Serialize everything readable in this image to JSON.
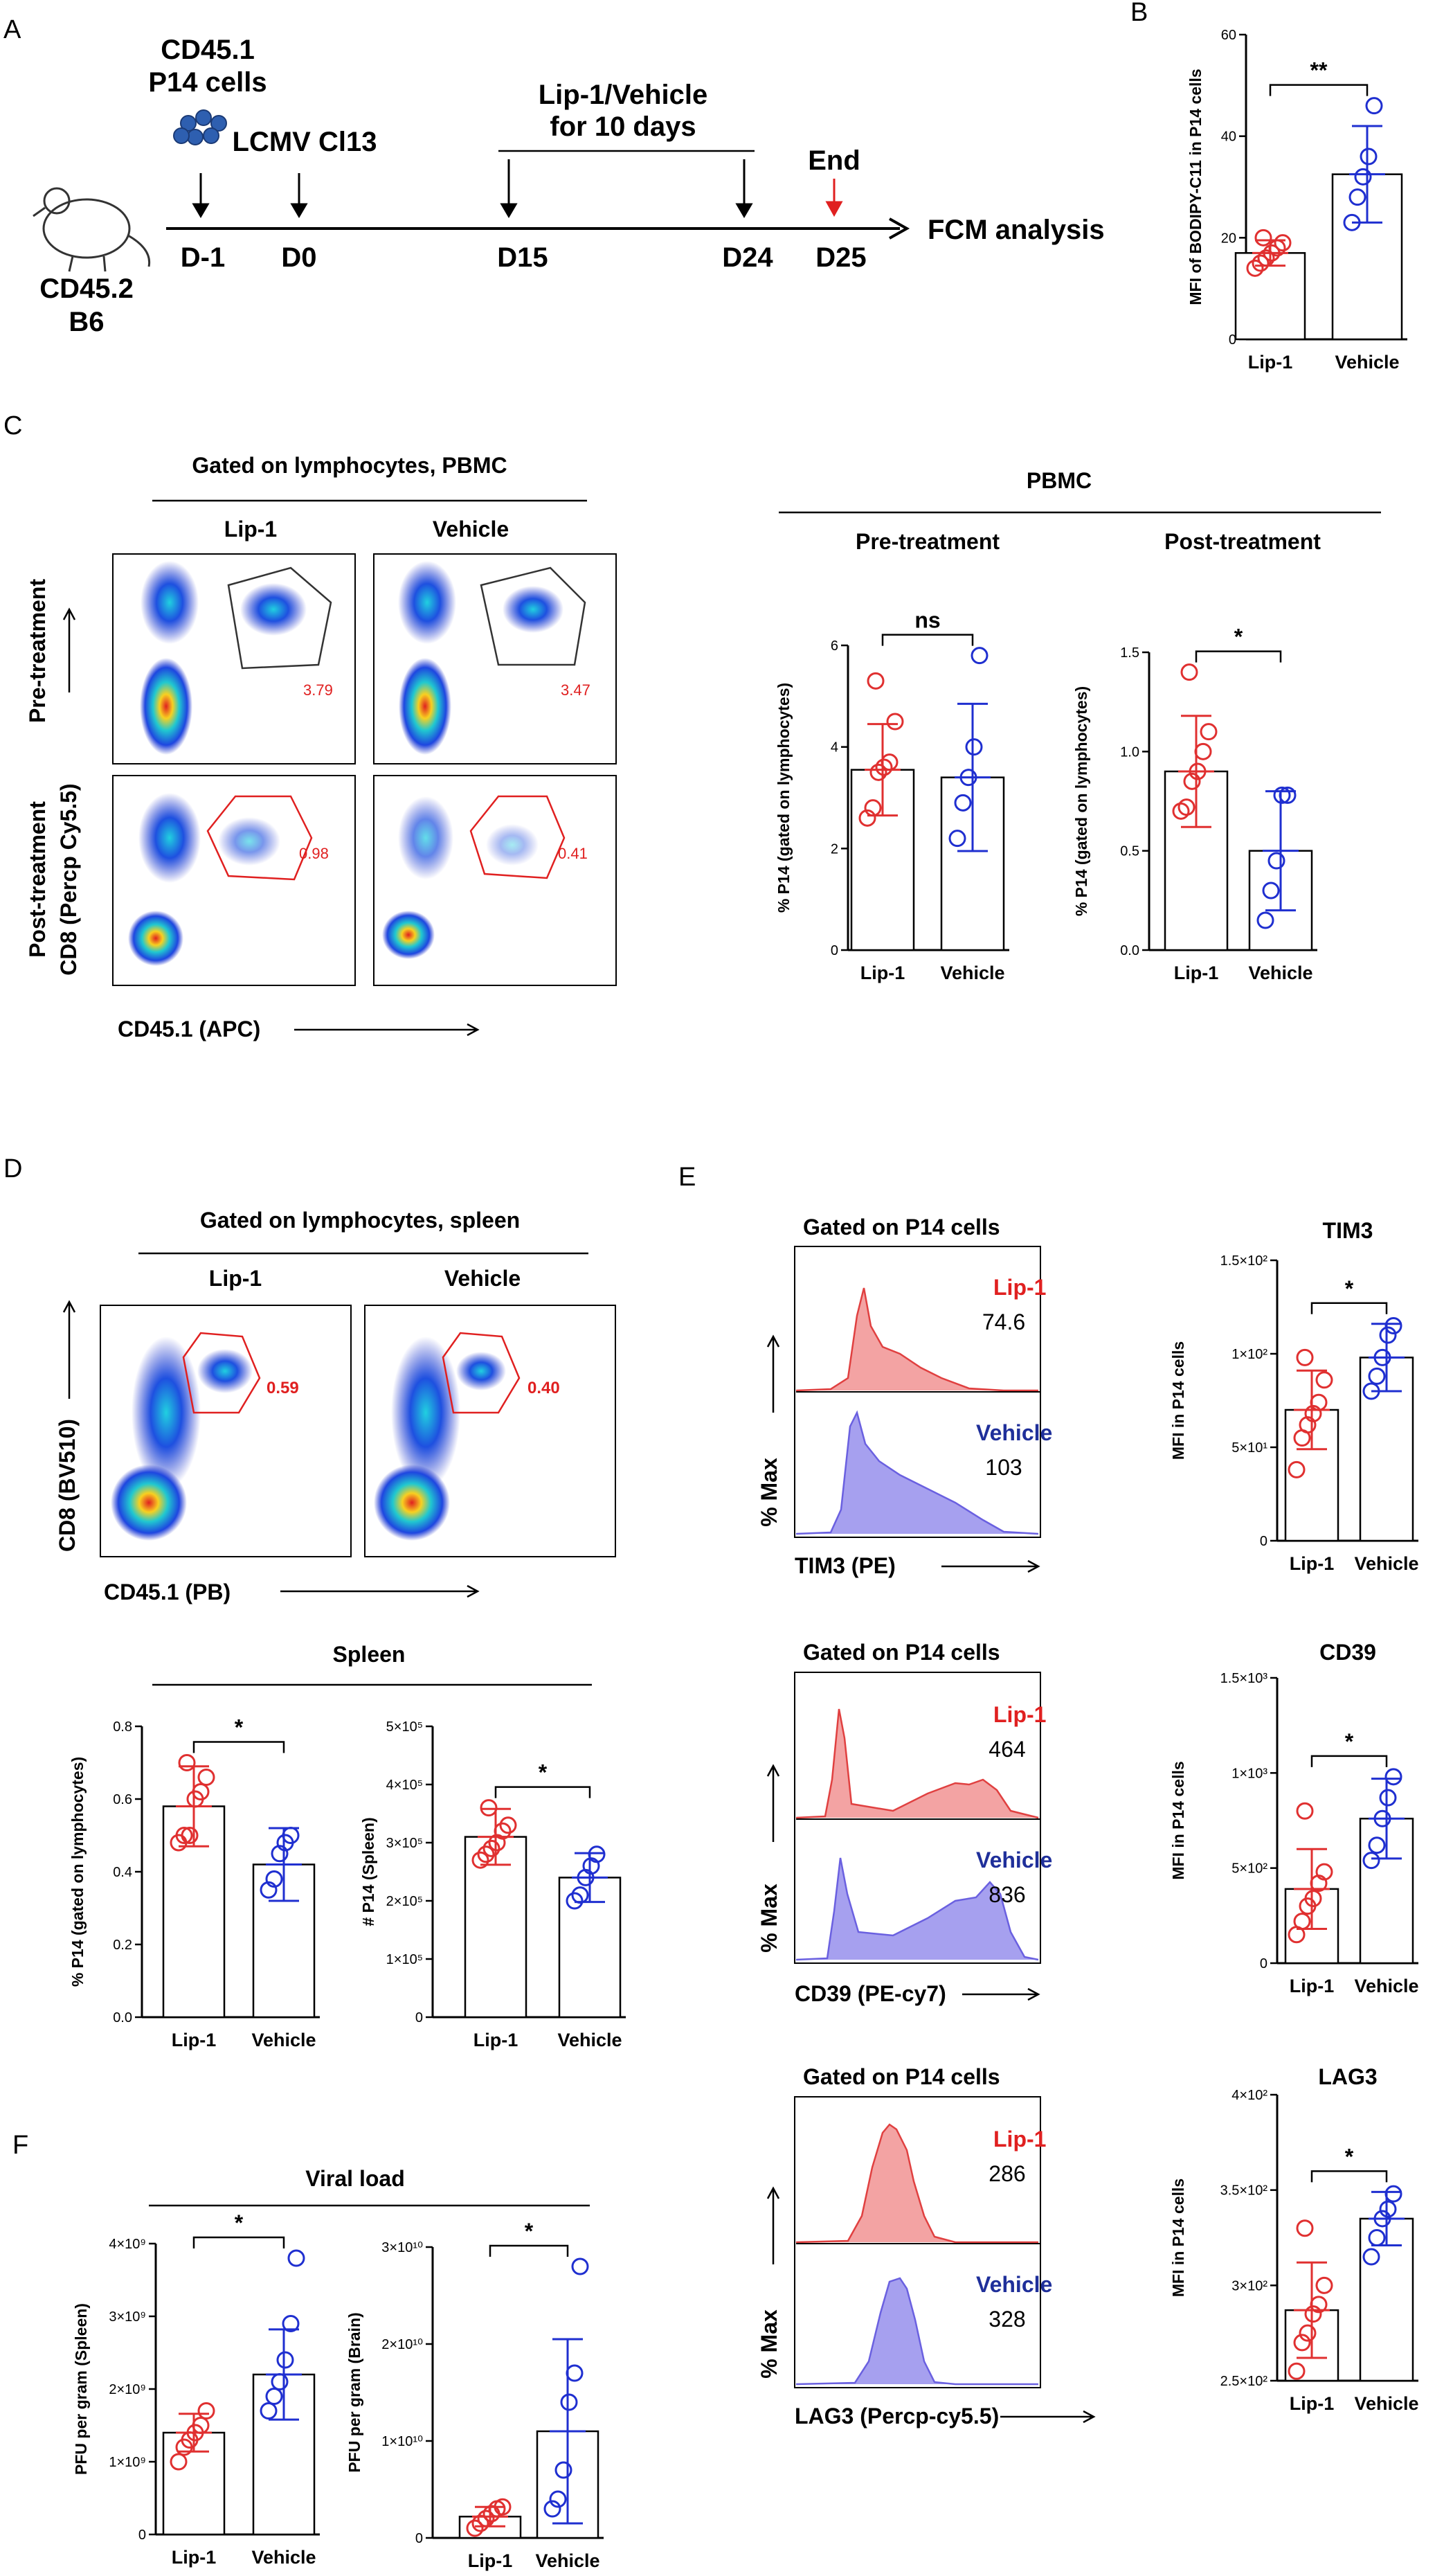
{
  "panels": {
    "A": "A",
    "B": "B",
    "C": "C",
    "D": "D",
    "E": "E",
    "F": "F"
  },
  "colors": {
    "lip1": "#e03030",
    "vehicle": "#1f2fd0",
    "lip1_fill": "#f3a3a3",
    "vehicle_fill": "#a6a0ef",
    "axis": "#000000"
  },
  "timeline": {
    "mouse_label_1": "CD45.2",
    "mouse_label_2": "B6",
    "cells_label_1": "CD45.1",
    "cells_label_2": "P14 cells",
    "virus_label": "LCMV Cl13",
    "treatment_label_1": "Lip-1/Vehicle",
    "treatment_label_2": "for 10 days",
    "end_label": "End",
    "days": [
      "D-1",
      "D0",
      "D15",
      "D24",
      "D25"
    ],
    "analysis": "FCM analysis"
  },
  "panel_c": {
    "gating_title": "Gated on lymphocytes, PBMC",
    "col_labels": [
      "Lip-1",
      "Vehicle"
    ],
    "row_label_pre": "Pre-treatment",
    "row_label_post_1": "Post-treatment",
    "row_label_post_2": "CD8 (Percp Cy5.5)",
    "x_label": "CD45.1 (APC)",
    "gate_values": [
      "3.79",
      "3.47",
      "0.98",
      "0.41"
    ],
    "pbmc_title": "PBMC",
    "pre_title": "Pre-treatment",
    "post_title": "Post-treatment"
  },
  "panel_d": {
    "gating_title": "Gated on lymphocytes, spleen",
    "col_labels": [
      "Lip-1",
      "Vehicle"
    ],
    "y_label": "CD8 (BV510)",
    "x_label": "CD45.1 (PB)",
    "gate_values": [
      "0.59",
      "0.40"
    ],
    "spleen_title": "Spleen"
  },
  "panel_e": {
    "gated": "Gated on P14 cells",
    "y_label": "% Max",
    "markers": [
      {
        "name": "TIM3",
        "x_label": "TIM3 (PE)",
        "lip1": "74.6",
        "vehicle": "103"
      },
      {
        "name": "CD39",
        "x_label": "CD39 (PE-cy7)",
        "lip1": "464",
        "vehicle": "836"
      },
      {
        "name": "LAG3",
        "x_label": "LAG3 (Percp-cy5.5)",
        "lip1": "286",
        "vehicle": "328"
      }
    ],
    "lip1_label": "Lip-1",
    "vehicle_label": "Vehicle"
  },
  "panel_f": {
    "title": "Viral load"
  },
  "chart_data": [
    {
      "id": "B",
      "type": "bar",
      "title": "",
      "ylabel": "MFI of BODIPY-C11 in P14 cells",
      "categories": [
        "Lip-1",
        "Vehicle"
      ],
      "values": [
        17,
        32.5
      ],
      "errors": [
        2.5,
        9.5
      ],
      "points": [
        [
          14,
          15,
          16,
          17,
          18,
          19,
          20
        ],
        [
          23,
          28,
          32,
          36,
          46
        ]
      ],
      "ylim": [
        0,
        60
      ],
      "yticks": [
        0,
        20,
        40,
        60
      ],
      "ytick_labels": [
        "0",
        "20",
        "40",
        "60"
      ],
      "significance": "**"
    },
    {
      "id": "C-pre",
      "type": "bar",
      "title": "Pre-treatment",
      "ylabel": "% P14 (gated on lymphocytes)",
      "categories": [
        "Lip-1",
        "Vehicle"
      ],
      "values": [
        3.55,
        3.4
      ],
      "errors": [
        0.9,
        1.45
      ],
      "points": [
        [
          2.6,
          2.8,
          3.5,
          3.6,
          3.7,
          4.5,
          5.3
        ],
        [
          2.2,
          2.9,
          3.4,
          4.0,
          5.8
        ]
      ],
      "ylim": [
        0,
        6
      ],
      "yticks": [
        0,
        2,
        4,
        6
      ],
      "ytick_labels": [
        "0",
        "2",
        "4",
        "6"
      ],
      "significance": "ns"
    },
    {
      "id": "C-post",
      "type": "bar",
      "title": "Post-treatment",
      "ylabel": "% P14 (gated on lymphocytes)",
      "categories": [
        "Lip-1",
        "Vehicle"
      ],
      "values": [
        0.9,
        0.5
      ],
      "errors": [
        0.28,
        0.3
      ],
      "points": [
        [
          0.7,
          0.72,
          0.85,
          0.9,
          1.0,
          1.1,
          1.4
        ],
        [
          0.15,
          0.3,
          0.45,
          0.78,
          0.78
        ]
      ],
      "ylim": [
        0,
        1.5
      ],
      "yticks": [
        0,
        0.5,
        1.0,
        1.5
      ],
      "ytick_labels": [
        "0.0",
        "0.5",
        "1.0",
        "1.5"
      ],
      "significance": "*"
    },
    {
      "id": "D-pct",
      "type": "bar",
      "title": "",
      "ylabel": "% P14 (gated on lymphocytes)",
      "categories": [
        "Lip-1",
        "Vehicle"
      ],
      "values": [
        0.58,
        0.42
      ],
      "errors": [
        0.11,
        0.1
      ],
      "points": [
        [
          0.48,
          0.5,
          0.5,
          0.6,
          0.62,
          0.66,
          0.7
        ],
        [
          0.35,
          0.38,
          0.45,
          0.48,
          0.5
        ]
      ],
      "ylim": [
        0,
        0.8
      ],
      "yticks": [
        0,
        0.2,
        0.4,
        0.6,
        0.8
      ],
      "ytick_labels": [
        "0.0",
        "0.2",
        "0.4",
        "0.6",
        "0.8"
      ],
      "significance": "*"
    },
    {
      "id": "D-num",
      "type": "bar",
      "title": "",
      "ylabel": "# P14 (Spleen)",
      "categories": [
        "Lip-1",
        "Vehicle"
      ],
      "values": [
        310000,
        240000
      ],
      "errors": [
        48000,
        42000
      ],
      "points": [
        [
          270000,
          280000,
          290000,
          300000,
          320000,
          330000,
          360000
        ],
        [
          200000,
          210000,
          240000,
          260000,
          280000
        ]
      ],
      "ylim": [
        0,
        500000
      ],
      "yticks": [
        0,
        100000,
        200000,
        300000,
        400000,
        500000
      ],
      "ytick_labels": [
        "0",
        "1×10⁵",
        "2×10⁵",
        "3×10⁵",
        "4×10⁵",
        "5×10⁵"
      ],
      "significance": "*"
    },
    {
      "id": "E-TIM3",
      "type": "bar",
      "title": "TIM3",
      "ylabel": "MFI in P14 cells",
      "categories": [
        "Lip-1",
        "Vehicle"
      ],
      "values": [
        70,
        98
      ],
      "errors": [
        21,
        18
      ],
      "points": [
        [
          38,
          55,
          62,
          68,
          74,
          86,
          98
        ],
        [
          80,
          88,
          98,
          110,
          115
        ]
      ],
      "ylim": [
        0,
        150
      ],
      "yticks": [
        0,
        50,
        100,
        150
      ],
      "ytick_labels": [
        "0",
        "5×10¹",
        "1×10²",
        "1.5×10²"
      ],
      "significance": "*"
    },
    {
      "id": "E-CD39",
      "type": "bar",
      "title": "CD39",
      "ylabel": "MFI in P14 cells",
      "categories": [
        "Lip-1",
        "Vehicle"
      ],
      "values": [
        390,
        760
      ],
      "errors": [
        210,
        210
      ],
      "points": [
        [
          150,
          220,
          300,
          340,
          420,
          480,
          800
        ],
        [
          540,
          620,
          760,
          870,
          980
        ]
      ],
      "ylim": [
        0,
        1500
      ],
      "yticks": [
        0,
        500,
        1000,
        1500
      ],
      "ytick_labels": [
        "0",
        "5×10²",
        "1×10³",
        "1.5×10³"
      ],
      "significance": "*"
    },
    {
      "id": "E-LAG3",
      "type": "bar",
      "title": "LAG3",
      "ylabel": "MFI in P14 cells",
      "categories": [
        "Lip-1",
        "Vehicle"
      ],
      "values": [
        287,
        335
      ],
      "errors": [
        25,
        14
      ],
      "points": [
        [
          255,
          270,
          275,
          285,
          290,
          300,
          330
        ],
        [
          315,
          325,
          335,
          340,
          348
        ]
      ],
      "ylim": [
        250,
        400
      ],
      "yticks": [
        250,
        300,
        350,
        400
      ],
      "ytick_labels": [
        "2.5×10²",
        "3×10²",
        "3.5×10²",
        "4×10²"
      ],
      "significance": "*"
    },
    {
      "id": "F-spleen",
      "type": "bar",
      "title": "",
      "ylabel": "PFU per gram (Spleen)",
      "categories": [
        "Lip-1",
        "Vehicle"
      ],
      "values": [
        1400000000,
        2200000000
      ],
      "errors": [
        260000000,
        620000000
      ],
      "points": [
        [
          1000000000,
          1200000000,
          1300000000,
          1400000000,
          1500000000,
          1700000000
        ],
        [
          1700000000,
          1900000000,
          2100000000,
          2400000000,
          2900000000,
          3800000000
        ]
      ],
      "ylim": [
        0,
        4000000000
      ],
      "yticks": [
        0,
        1000000000,
        2000000000,
        3000000000,
        4000000000
      ],
      "ytick_labels": [
        "0",
        "1×10⁹",
        "2×10⁹",
        "3×10⁹",
        "4×10⁹"
      ],
      "significance": "*"
    },
    {
      "id": "F-brain",
      "type": "bar",
      "title": "",
      "ylabel": "PFU per gram (Brain)",
      "categories": [
        "Lip-1",
        "Vehicle"
      ],
      "values": [
        2200000000,
        11000000000
      ],
      "errors": [
        1000000000,
        9500000000
      ],
      "points": [
        [
          1000000000,
          1500000000,
          2000000000,
          2500000000,
          3000000000,
          3200000000
        ],
        [
          3000000000,
          4000000000,
          7000000000,
          14000000000,
          17000000000,
          28000000000
        ]
      ],
      "ylim": [
        0,
        30000000000
      ],
      "yticks": [
        0,
        10000000000,
        20000000000,
        30000000000
      ],
      "ytick_labels": [
        "0",
        "1×10¹⁰",
        "2×10¹⁰",
        "3×10¹⁰"
      ],
      "significance": "*"
    }
  ]
}
